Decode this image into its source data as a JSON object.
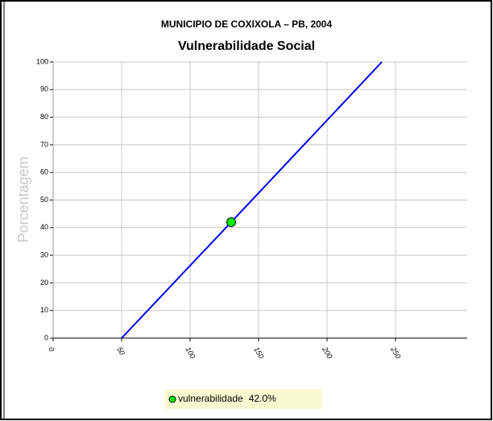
{
  "chart_data": {
    "type": "line",
    "title": "MUNICIPIO DE COXIXOLA – PB, 2004",
    "subtitle": "Vulnerabilidade Social",
    "y_label": "Porcentagem",
    "x": [
      50,
      130,
      240
    ],
    "series": [
      {
        "name": "vulnerabilidade",
        "color": "#0000ee",
        "values": [
          0,
          42,
          100
        ]
      }
    ],
    "marker": {
      "x": 130,
      "value": 42,
      "value_label": "42.0%",
      "color": "#00ee00"
    },
    "xlim": [
      0,
      300
    ],
    "xticks": [
      0,
      50,
      100,
      150,
      200,
      250
    ],
    "ylim": [
      0,
      100
    ],
    "yticks": [
      0,
      10,
      20,
      30,
      40,
      50,
      60,
      70,
      80,
      90,
      100
    ],
    "grid": true
  }
}
